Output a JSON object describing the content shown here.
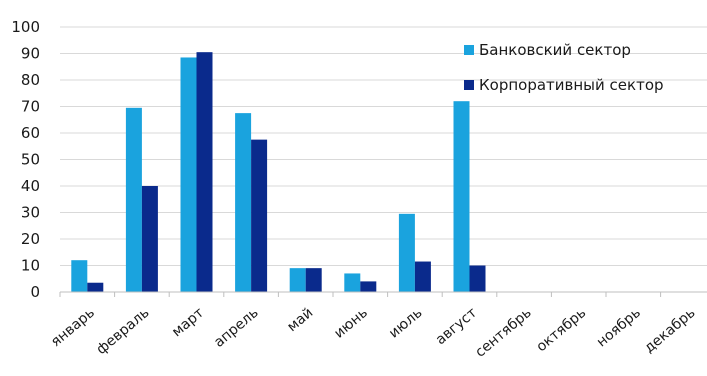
{
  "chart_data": {
    "type": "bar",
    "categories": [
      "январь",
      "февраль",
      "март",
      "апрель",
      "май",
      "июнь",
      "июль",
      "август",
      "сентябрь",
      "октябрь",
      "ноябрь",
      "декабрь"
    ],
    "series": [
      {
        "name": "Банковский сектор",
        "color": "#1aa3de",
        "values": [
          12,
          69.5,
          88.5,
          67.5,
          9,
          7,
          29.5,
          72,
          0,
          0,
          0,
          0
        ]
      },
      {
        "name": "Корпоративный сектор",
        "color": "#0a2a8c",
        "values": [
          3.5,
          40,
          90.5,
          57.5,
          9,
          4,
          11.5,
          10,
          0,
          0,
          0,
          0
        ]
      }
    ],
    "yticks": [
      0,
      10,
      20,
      30,
      40,
      50,
      60,
      70,
      80,
      90,
      100
    ],
    "ylim": [
      0,
      100
    ],
    "grid": "horizontal",
    "legend": "top-right",
    "title": "",
    "xlabel": "",
    "ylabel": ""
  }
}
